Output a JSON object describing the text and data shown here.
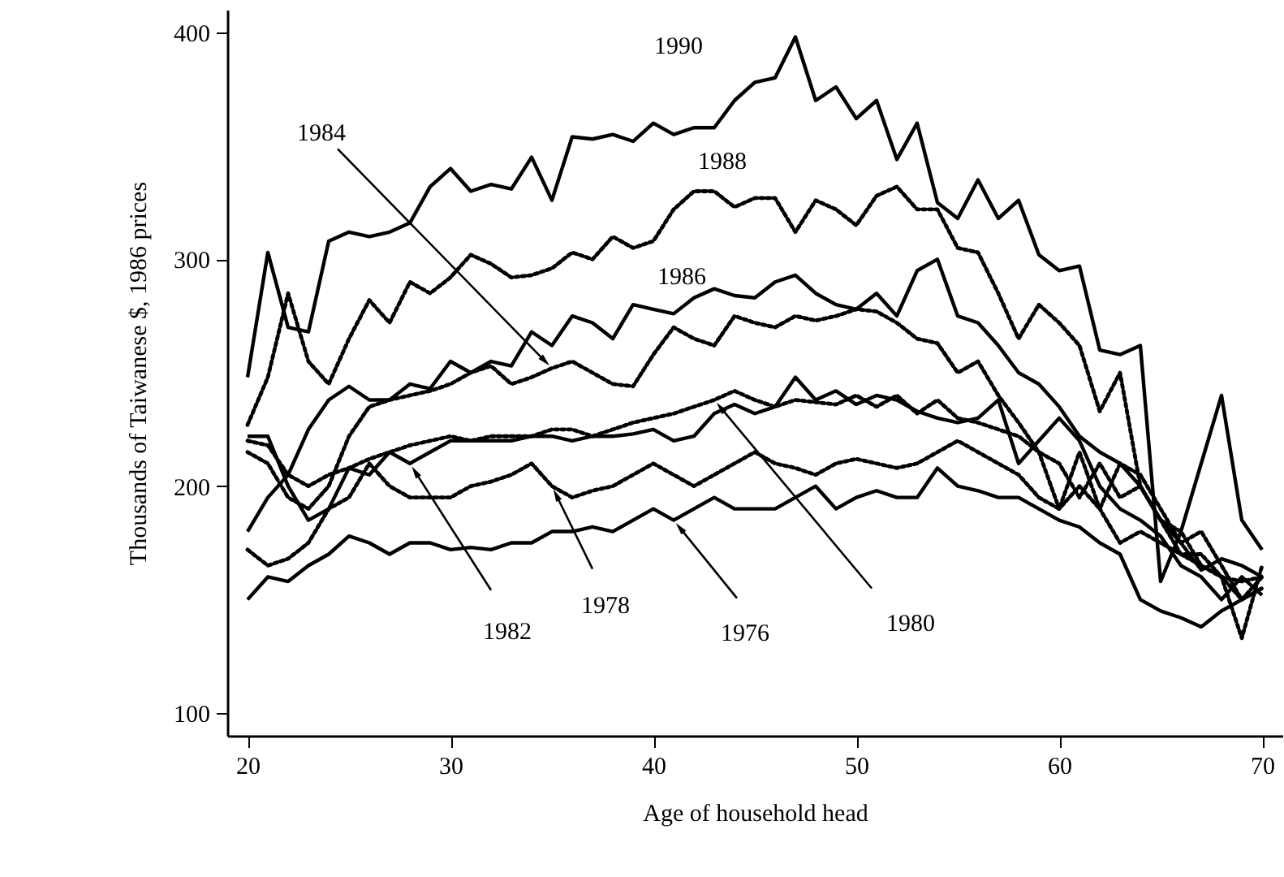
{
  "chart_data": {
    "type": "line",
    "xlabel": "Age of household head",
    "ylabel": "Thousands of Taiwanese $, 1986 prices",
    "x": [
      20,
      21,
      22,
      23,
      24,
      25,
      26,
      27,
      28,
      29,
      30,
      31,
      32,
      33,
      34,
      35,
      36,
      37,
      38,
      39,
      40,
      41,
      42,
      43,
      44,
      45,
      46,
      47,
      48,
      49,
      50,
      51,
      52,
      53,
      54,
      55,
      56,
      57,
      58,
      59,
      60,
      61,
      62,
      63,
      64,
      65,
      66,
      67,
      68,
      69,
      70
    ],
    "series": [
      {
        "color": "#000000",
        "line_style": "solid",
        "values": [
          248,
          303,
          270,
          268,
          308,
          312,
          310,
          312,
          316,
          332,
          340,
          330,
          333,
          331,
          345,
          326,
          354,
          353,
          355,
          352,
          360,
          355,
          358,
          358,
          370,
          378,
          380,
          398,
          370,
          376,
          362,
          370,
          344,
          360,
          325,
          318,
          335,
          318,
          326,
          302,
          295,
          297,
          260,
          258,
          262,
          158,
          180,
          210,
          240,
          185,
          172
        ]
      },
      {
        "color": "#000000",
        "line_style": "dotted",
        "values": [
          227,
          248,
          285,
          255,
          245,
          265,
          282,
          272,
          290,
          285,
          292,
          302,
          298,
          292,
          293,
          296,
          303,
          300,
          310,
          305,
          308,
          322,
          330,
          330,
          323,
          327,
          327,
          312,
          326,
          322,
          315,
          328,
          332,
          322,
          322,
          305,
          303,
          285,
          265,
          280,
          272,
          262,
          233,
          250,
          200,
          185,
          180,
          165,
          160,
          133,
          165
        ]
      },
      {
        "color": "#000000",
        "line_style": "solid",
        "values": [
          180,
          195,
          205,
          225,
          238,
          244,
          238,
          238,
          245,
          243,
          255,
          250,
          255,
          253,
          268,
          262,
          275,
          272,
          265,
          280,
          278,
          276,
          283,
          287,
          284,
          283,
          290,
          293,
          285,
          280,
          278,
          285,
          275,
          295,
          300,
          275,
          272,
          262,
          250,
          245,
          235,
          222,
          215,
          210,
          200,
          185,
          175,
          163,
          168,
          165,
          160
        ]
      },
      {
        "color": "#000000",
        "line_style": "dotted",
        "values": [
          215,
          210,
          195,
          190,
          200,
          222,
          235,
          238,
          240,
          242,
          245,
          250,
          253,
          245,
          248,
          252,
          255,
          250,
          245,
          244,
          258,
          270,
          265,
          262,
          275,
          272,
          270,
          275,
          273,
          275,
          278,
          277,
          272,
          265,
          263,
          250,
          255,
          240,
          228,
          215,
          190,
          200,
          190,
          210,
          205,
          190,
          175,
          180,
          165,
          150,
          155
        ]
      },
      {
        "color": "#000000",
        "line_style": "dotted",
        "values": [
          220,
          218,
          205,
          200,
          205,
          208,
          212,
          215,
          218,
          220,
          222,
          220,
          222,
          222,
          222,
          225,
          225,
          222,
          225,
          228,
          230,
          232,
          235,
          238,
          242,
          238,
          235,
          238,
          237,
          236,
          240,
          235,
          240,
          232,
          238,
          230,
          228,
          225,
          222,
          215,
          210,
          195,
          210,
          195,
          200,
          185,
          170,
          170,
          160,
          150,
          160
        ]
      },
      {
        "color": "#000000",
        "line_style": "solid",
        "values": [
          222,
          222,
          200,
          185,
          190,
          208,
          205,
          215,
          210,
          215,
          220,
          220,
          220,
          220,
          222,
          222,
          220,
          222,
          222,
          223,
          225,
          220,
          222,
          232,
          236,
          232,
          235,
          248,
          238,
          242,
          236,
          240,
          238,
          233,
          230,
          228,
          230,
          238,
          210,
          220,
          230,
          220,
          200,
          190,
          185,
          178,
          165,
          160,
          150,
          160,
          152
        ]
      },
      {
        "color": "#000000",
        "line_style": "dotted",
        "values": [
          172,
          165,
          168,
          175,
          190,
          195,
          210,
          200,
          195,
          195,
          195,
          200,
          202,
          205,
          210,
          200,
          195,
          198,
          200,
          205,
          210,
          205,
          200,
          205,
          210,
          215,
          210,
          208,
          205,
          210,
          212,
          210,
          208,
          210,
          215,
          220,
          215,
          210,
          205,
          195,
          190,
          215,
          190,
          175,
          180,
          175,
          170,
          165,
          160,
          158,
          160
        ]
      },
      {
        "color": "#000000",
        "line_style": "solid",
        "values": [
          150,
          160,
          158,
          165,
          170,
          178,
          175,
          170,
          175,
          175,
          172,
          173,
          172,
          175,
          175,
          180,
          180,
          182,
          180,
          185,
          190,
          185,
          190,
          195,
          190,
          190,
          190,
          195,
          200,
          190,
          195,
          198,
          195,
          195,
          208,
          200,
          198,
          195,
          195,
          190,
          185,
          182,
          175,
          170,
          150,
          145,
          142,
          138,
          145,
          150,
          155
        ]
      }
    ],
    "annotations": [
      "1990",
      "1988",
      "1986",
      {
        "text": "1984",
        "x": 35,
        "y": 252
      },
      {
        "text": "1982",
        "x": 28,
        "y": 210
      },
      {
        "text": "1978",
        "x": 35,
        "y": 200
      },
      {
        "text": "1976",
        "x": 41,
        "y": 185
      },
      {
        "text": "1980",
        "x": 43,
        "y": 238
      }
    ],
    "xlim": [
      19,
      71
    ],
    "xticks": [
      20,
      30,
      40,
      50,
      60,
      70
    ],
    "ylim": [
      90,
      410
    ],
    "yticks": [
      100,
      200,
      300,
      400
    ],
    "grid": false,
    "marker": "none"
  }
}
